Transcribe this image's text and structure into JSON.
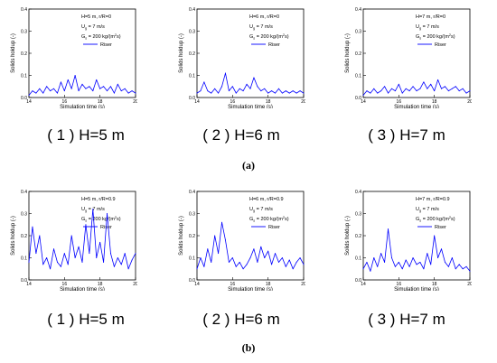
{
  "figure": {
    "row_labels": [
      "(a)",
      "(b)"
    ]
  },
  "panels": [
    {
      "caption": "( 1 ) H=5 m",
      "annotations": [
        "H=5 m, r/R=0",
        "U",
        "g",
        " = 7 m/s",
        "G",
        "s",
        " = 200 kg/(m",
        "2",
        "s)"
      ],
      "legend": "Riser"
    },
    {
      "caption": "( 2 ) H=6 m",
      "annotations": [
        "H=6 m, r/R=0",
        "U",
        "g",
        " = 7 m/s",
        "G",
        "s",
        " = 200 kg/(m",
        "2",
        "s)"
      ],
      "legend": "Riser"
    },
    {
      "caption": "( 3 ) H=7 m",
      "annotations": [
        "H=7 m, r/R=0",
        "U",
        "g",
        " = 7 m/s",
        "G",
        "s",
        " = 200 kg/(m",
        "2",
        "s)"
      ],
      "legend": "Riser"
    },
    {
      "caption": "( 1 ) H=5 m",
      "annotations": [
        "H=5 m, r/R=0.9",
        "U",
        "g",
        " = 7 m/s",
        "G",
        "s",
        " = 200 kg/(m",
        "2",
        "s)"
      ],
      "legend": "Riser"
    },
    {
      "caption": "( 2 ) H=6 m",
      "annotations": [
        "H=6 m, r/R=0.9",
        "U",
        "g",
        " = 7 m/s",
        "G",
        "s",
        " = 200 kg/(m",
        "2",
        "s)"
      ],
      "legend": "Riser"
    },
    {
      "caption": "( 3 ) H=7 m",
      "annotations": [
        "H=7 m, r/R=0.9",
        "U",
        "g",
        " = 7 m/s",
        "G",
        "s",
        " = 200 kg/(m",
        "2",
        "s)"
      ],
      "legend": "Riser"
    }
  ],
  "chart_data": [
    {
      "type": "line",
      "xlabel": "Simulation time (s)",
      "ylabel": "Solids holdup (-)",
      "xlim": [
        14,
        20
      ],
      "ylim": [
        0,
        0.4
      ],
      "xticks": [
        14,
        16,
        18,
        20
      ],
      "yticks": [
        0.0,
        0.1,
        0.2,
        0.3,
        0.4
      ],
      "series": [
        {
          "name": "Riser",
          "color": "#0000ff",
          "x": [
            14.0,
            14.2,
            14.4,
            14.6,
            14.8,
            15.0,
            15.2,
            15.4,
            15.6,
            15.8,
            16.0,
            16.2,
            16.4,
            16.6,
            16.8,
            17.0,
            17.2,
            17.4,
            17.6,
            17.8,
            18.0,
            18.2,
            18.4,
            18.6,
            18.8,
            19.0,
            19.2,
            19.4,
            19.6,
            19.8,
            20.0
          ],
          "y": [
            0.01,
            0.03,
            0.02,
            0.04,
            0.02,
            0.05,
            0.03,
            0.04,
            0.02,
            0.07,
            0.03,
            0.08,
            0.04,
            0.1,
            0.03,
            0.06,
            0.04,
            0.05,
            0.03,
            0.08,
            0.04,
            0.05,
            0.03,
            0.05,
            0.02,
            0.06,
            0.03,
            0.04,
            0.02,
            0.03,
            0.02
          ]
        }
      ]
    },
    {
      "type": "line",
      "xlabel": "Simulation time (s)",
      "ylabel": "Solids holdup (-)",
      "xlim": [
        14,
        20
      ],
      "ylim": [
        0,
        0.4
      ],
      "xticks": [
        14,
        16,
        18,
        20
      ],
      "yticks": [
        0.0,
        0.1,
        0.2,
        0.3,
        0.4
      ],
      "series": [
        {
          "name": "Riser",
          "color": "#0000ff",
          "x": [
            14.0,
            14.2,
            14.4,
            14.6,
            14.8,
            15.0,
            15.2,
            15.4,
            15.6,
            15.8,
            16.0,
            16.2,
            16.4,
            16.6,
            16.8,
            17.0,
            17.2,
            17.4,
            17.6,
            17.8,
            18.0,
            18.2,
            18.4,
            18.6,
            18.8,
            19.0,
            19.2,
            19.4,
            19.6,
            19.8,
            20.0
          ],
          "y": [
            0.02,
            0.03,
            0.07,
            0.03,
            0.02,
            0.04,
            0.02,
            0.05,
            0.11,
            0.03,
            0.05,
            0.02,
            0.04,
            0.03,
            0.06,
            0.04,
            0.09,
            0.05,
            0.03,
            0.04,
            0.02,
            0.03,
            0.02,
            0.04,
            0.02,
            0.03,
            0.02,
            0.03,
            0.02,
            0.03,
            0.02
          ]
        }
      ]
    },
    {
      "type": "line",
      "xlabel": "Simulation time (s)",
      "ylabel": "Solids holdup (-)",
      "xlim": [
        14,
        20
      ],
      "ylim": [
        0,
        0.4
      ],
      "xticks": [
        14,
        16,
        18,
        20
      ],
      "yticks": [
        0.0,
        0.1,
        0.2,
        0.3,
        0.4
      ],
      "series": [
        {
          "name": "Riser",
          "color": "#0000ff",
          "x": [
            14.0,
            14.2,
            14.4,
            14.6,
            14.8,
            15.0,
            15.2,
            15.4,
            15.6,
            15.8,
            16.0,
            16.2,
            16.4,
            16.6,
            16.8,
            17.0,
            17.2,
            17.4,
            17.6,
            17.8,
            18.0,
            18.2,
            18.4,
            18.6,
            18.8,
            19.0,
            19.2,
            19.4,
            19.6,
            19.8,
            20.0
          ],
          "y": [
            0.01,
            0.03,
            0.02,
            0.04,
            0.02,
            0.03,
            0.05,
            0.02,
            0.04,
            0.03,
            0.06,
            0.02,
            0.04,
            0.03,
            0.05,
            0.03,
            0.04,
            0.07,
            0.04,
            0.06,
            0.03,
            0.08,
            0.04,
            0.05,
            0.03,
            0.04,
            0.05,
            0.03,
            0.04,
            0.02,
            0.03
          ]
        }
      ]
    },
    {
      "type": "line",
      "xlabel": "Simulation time (s)",
      "ylabel": "Solids holdup (-)",
      "xlim": [
        14,
        20
      ],
      "ylim": [
        0,
        0.4
      ],
      "xticks": [
        14,
        16,
        18,
        20
      ],
      "yticks": [
        0.0,
        0.1,
        0.2,
        0.3,
        0.4
      ],
      "series": [
        {
          "name": "Riser",
          "color": "#0000ff",
          "x": [
            14.0,
            14.2,
            14.4,
            14.6,
            14.8,
            15.0,
            15.2,
            15.4,
            15.6,
            15.8,
            16.0,
            16.2,
            16.4,
            16.6,
            16.8,
            17.0,
            17.2,
            17.4,
            17.6,
            17.8,
            18.0,
            18.2,
            18.4,
            18.6,
            18.8,
            19.0,
            19.2,
            19.4,
            19.6,
            19.8,
            20.0
          ],
          "y": [
            0.08,
            0.24,
            0.12,
            0.2,
            0.07,
            0.1,
            0.05,
            0.14,
            0.08,
            0.06,
            0.12,
            0.07,
            0.2,
            0.1,
            0.15,
            0.08,
            0.25,
            0.12,
            0.32,
            0.1,
            0.17,
            0.08,
            0.3,
            0.12,
            0.06,
            0.1,
            0.07,
            0.12,
            0.05,
            0.09,
            0.12
          ]
        }
      ]
    },
    {
      "type": "line",
      "xlabel": "Simulation time (s)",
      "ylabel": "Solids holdup (-)",
      "xlim": [
        14,
        20
      ],
      "ylim": [
        0,
        0.4
      ],
      "xticks": [
        14,
        16,
        18,
        20
      ],
      "yticks": [
        0.0,
        0.1,
        0.2,
        0.3,
        0.4
      ],
      "series": [
        {
          "name": "Riser",
          "color": "#0000ff",
          "x": [
            14.0,
            14.2,
            14.4,
            14.6,
            14.8,
            15.0,
            15.2,
            15.4,
            15.6,
            15.8,
            16.0,
            16.2,
            16.4,
            16.6,
            16.8,
            17.0,
            17.2,
            17.4,
            17.6,
            17.8,
            18.0,
            18.2,
            18.4,
            18.6,
            18.8,
            19.0,
            19.2,
            19.4,
            19.6,
            19.8,
            20.0
          ],
          "y": [
            0.05,
            0.1,
            0.06,
            0.14,
            0.08,
            0.2,
            0.12,
            0.26,
            0.18,
            0.08,
            0.1,
            0.06,
            0.08,
            0.05,
            0.07,
            0.1,
            0.14,
            0.08,
            0.15,
            0.1,
            0.13,
            0.07,
            0.12,
            0.08,
            0.1,
            0.06,
            0.09,
            0.05,
            0.08,
            0.1,
            0.07
          ]
        }
      ]
    },
    {
      "type": "line",
      "xlabel": "Simulation time (s)",
      "ylabel": "Solids holdup (-)",
      "xlim": [
        14,
        20
      ],
      "ylim": [
        0,
        0.4
      ],
      "xticks": [
        14,
        16,
        18,
        20
      ],
      "yticks": [
        0.0,
        0.1,
        0.2,
        0.3,
        0.4
      ],
      "series": [
        {
          "name": "Riser",
          "color": "#0000ff",
          "x": [
            14.0,
            14.2,
            14.4,
            14.6,
            14.8,
            15.0,
            15.2,
            15.4,
            15.6,
            15.8,
            16.0,
            16.2,
            16.4,
            16.6,
            16.8,
            17.0,
            17.2,
            17.4,
            17.6,
            17.8,
            18.0,
            18.2,
            18.4,
            18.6,
            18.8,
            19.0,
            19.2,
            19.4,
            19.6,
            19.8,
            20.0
          ],
          "y": [
            0.05,
            0.08,
            0.04,
            0.1,
            0.06,
            0.12,
            0.08,
            0.23,
            0.1,
            0.06,
            0.08,
            0.05,
            0.09,
            0.06,
            0.1,
            0.07,
            0.08,
            0.05,
            0.12,
            0.07,
            0.2,
            0.1,
            0.14,
            0.08,
            0.06,
            0.1,
            0.05,
            0.07,
            0.05,
            0.06,
            0.04
          ]
        }
      ]
    }
  ]
}
